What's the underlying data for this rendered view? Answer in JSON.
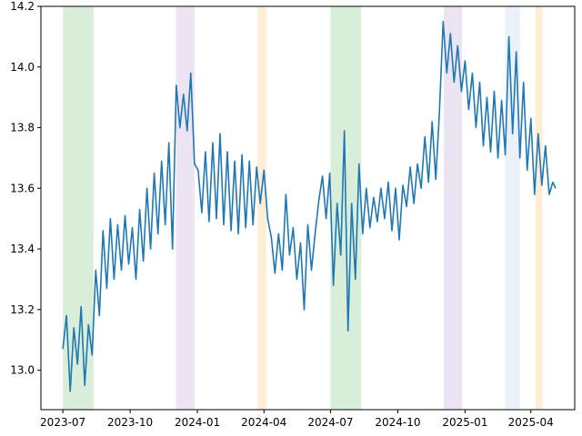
{
  "chart_data": {
    "type": "line",
    "title": "",
    "xlabel": "",
    "ylabel": "",
    "xlim": [
      "2023-06-01",
      "2025-05-31"
    ],
    "ylim": [
      12.87,
      14.2
    ],
    "grid": false,
    "x_ticks": [
      {
        "date": "2023-07-01",
        "label": "2023-07"
      },
      {
        "date": "2023-10-01",
        "label": "2023-10"
      },
      {
        "date": "2024-01-01",
        "label": "2024-01"
      },
      {
        "date": "2024-04-01",
        "label": "2024-04"
      },
      {
        "date": "2024-07-01",
        "label": "2024-07"
      },
      {
        "date": "2024-10-01",
        "label": "2024-10"
      },
      {
        "date": "2025-01-01",
        "label": "2025-01"
      },
      {
        "date": "2025-04-01",
        "label": "2025-04"
      }
    ],
    "y_ticks": [
      {
        "value": 13.0,
        "label": "13.0"
      },
      {
        "value": 13.2,
        "label": "13.2"
      },
      {
        "value": 13.4,
        "label": "13.4"
      },
      {
        "value": 13.6,
        "label": "13.6"
      },
      {
        "value": 13.8,
        "label": "13.8"
      },
      {
        "value": 14.0,
        "label": "14.0"
      },
      {
        "value": 14.2,
        "label": "14.2"
      }
    ],
    "shaded_spans": [
      {
        "start": "2023-07-01",
        "end": "2023-08-12",
        "color": "#2ca02c"
      },
      {
        "start": "2023-12-03",
        "end": "2023-12-28",
        "color": "#9467bd"
      },
      {
        "start": "2024-03-23",
        "end": "2024-04-04",
        "color": "#ff9f1c"
      },
      {
        "start": "2024-07-01",
        "end": "2024-08-12",
        "color": "#2ca02c"
      },
      {
        "start": "2024-12-03",
        "end": "2024-12-28",
        "color": "#9467bd"
      },
      {
        "start": "2025-02-25",
        "end": "2025-03-17",
        "color": "#8fb3d9"
      },
      {
        "start": "2025-04-07",
        "end": "2025-04-17",
        "color": "#ff9f1c"
      }
    ],
    "series": [
      {
        "name": "series",
        "color": "#1f77b4",
        "points": [
          [
            "2023-07-01",
            13.07
          ],
          [
            "2023-07-06",
            13.18
          ],
          [
            "2023-07-11",
            12.93
          ],
          [
            "2023-07-16",
            13.14
          ],
          [
            "2023-07-21",
            13.02
          ],
          [
            "2023-07-26",
            13.21
          ],
          [
            "2023-07-31",
            12.95
          ],
          [
            "2023-08-05",
            13.15
          ],
          [
            "2023-08-10",
            13.05
          ],
          [
            "2023-08-15",
            13.33
          ],
          [
            "2023-08-20",
            13.18
          ],
          [
            "2023-08-25",
            13.46
          ],
          [
            "2023-08-30",
            13.27
          ],
          [
            "2023-09-04",
            13.5
          ],
          [
            "2023-09-09",
            13.3
          ],
          [
            "2023-09-14",
            13.48
          ],
          [
            "2023-09-19",
            13.33
          ],
          [
            "2023-09-24",
            13.51
          ],
          [
            "2023-09-29",
            13.35
          ],
          [
            "2023-10-04",
            13.47
          ],
          [
            "2023-10-09",
            13.3
          ],
          [
            "2023-10-14",
            13.53
          ],
          [
            "2023-10-19",
            13.36
          ],
          [
            "2023-10-24",
            13.6
          ],
          [
            "2023-10-29",
            13.4
          ],
          [
            "2023-11-03",
            13.65
          ],
          [
            "2023-11-08",
            13.45
          ],
          [
            "2023-11-13",
            13.69
          ],
          [
            "2023-11-18",
            13.48
          ],
          [
            "2023-11-23",
            13.75
          ],
          [
            "2023-11-28",
            13.4
          ],
          [
            "2023-12-03",
            13.94
          ],
          [
            "2023-12-08",
            13.8
          ],
          [
            "2023-12-13",
            13.91
          ],
          [
            "2023-12-18",
            13.79
          ],
          [
            "2023-12-23",
            13.98
          ],
          [
            "2023-12-28",
            13.68
          ],
          [
            "2024-01-02",
            13.66
          ],
          [
            "2024-01-07",
            13.52
          ],
          [
            "2024-01-12",
            13.72
          ],
          [
            "2024-01-17",
            13.49
          ],
          [
            "2024-01-22",
            13.75
          ],
          [
            "2024-01-27",
            13.5
          ],
          [
            "2024-02-01",
            13.78
          ],
          [
            "2024-02-06",
            13.48
          ],
          [
            "2024-02-11",
            13.72
          ],
          [
            "2024-02-16",
            13.46
          ],
          [
            "2024-02-21",
            13.69
          ],
          [
            "2024-02-26",
            13.45
          ],
          [
            "2024-03-02",
            13.71
          ],
          [
            "2024-03-07",
            13.47
          ],
          [
            "2024-03-12",
            13.69
          ],
          [
            "2024-03-17",
            13.48
          ],
          [
            "2024-03-22",
            13.67
          ],
          [
            "2024-03-27",
            13.55
          ],
          [
            "2024-04-01",
            13.66
          ],
          [
            "2024-04-06",
            13.5
          ],
          [
            "2024-04-11",
            13.44
          ],
          [
            "2024-04-16",
            13.32
          ],
          [
            "2024-04-21",
            13.45
          ],
          [
            "2024-04-26",
            13.33
          ],
          [
            "2024-05-01",
            13.58
          ],
          [
            "2024-05-06",
            13.38
          ],
          [
            "2024-05-11",
            13.47
          ],
          [
            "2024-05-16",
            13.3
          ],
          [
            "2024-05-21",
            13.42
          ],
          [
            "2024-05-26",
            13.2
          ],
          [
            "2024-05-31",
            13.48
          ],
          [
            "2024-06-05",
            13.33
          ],
          [
            "2024-06-10",
            13.45
          ],
          [
            "2024-06-15",
            13.56
          ],
          [
            "2024-06-20",
            13.64
          ],
          [
            "2024-06-25",
            13.5
          ],
          [
            "2024-06-30",
            13.65
          ],
          [
            "2024-07-05",
            13.28
          ],
          [
            "2024-07-10",
            13.55
          ],
          [
            "2024-07-15",
            13.38
          ],
          [
            "2024-07-20",
            13.79
          ],
          [
            "2024-07-25",
            13.13
          ],
          [
            "2024-07-30",
            13.55
          ],
          [
            "2024-08-04",
            13.3
          ],
          [
            "2024-08-09",
            13.68
          ],
          [
            "2024-08-14",
            13.45
          ],
          [
            "2024-08-19",
            13.6
          ],
          [
            "2024-08-24",
            13.47
          ],
          [
            "2024-08-29",
            13.57
          ],
          [
            "2024-09-03",
            13.49
          ],
          [
            "2024-09-08",
            13.6
          ],
          [
            "2024-09-13",
            13.5
          ],
          [
            "2024-09-18",
            13.62
          ],
          [
            "2024-09-23",
            13.46
          ],
          [
            "2024-09-28",
            13.6
          ],
          [
            "2024-10-03",
            13.43
          ],
          [
            "2024-10-08",
            13.61
          ],
          [
            "2024-10-13",
            13.54
          ],
          [
            "2024-10-18",
            13.67
          ],
          [
            "2024-10-23",
            13.55
          ],
          [
            "2024-10-28",
            13.68
          ],
          [
            "2024-11-02",
            13.6
          ],
          [
            "2024-11-07",
            13.77
          ],
          [
            "2024-11-12",
            13.62
          ],
          [
            "2024-11-17",
            13.82
          ],
          [
            "2024-11-22",
            13.63
          ],
          [
            "2024-11-27",
            13.85
          ],
          [
            "2024-12-02",
            14.15
          ],
          [
            "2024-12-07",
            13.98
          ],
          [
            "2024-12-12",
            14.11
          ],
          [
            "2024-12-17",
            13.95
          ],
          [
            "2024-12-22",
            14.07
          ],
          [
            "2024-12-27",
            13.92
          ],
          [
            "2025-01-01",
            14.02
          ],
          [
            "2025-01-06",
            13.86
          ],
          [
            "2025-01-11",
            13.98
          ],
          [
            "2025-01-16",
            13.8
          ],
          [
            "2025-01-21",
            13.95
          ],
          [
            "2025-01-26",
            13.74
          ],
          [
            "2025-01-31",
            13.9
          ],
          [
            "2025-02-05",
            13.72
          ],
          [
            "2025-02-10",
            13.92
          ],
          [
            "2025-02-15",
            13.7
          ],
          [
            "2025-02-20",
            13.89
          ],
          [
            "2025-02-25",
            13.71
          ],
          [
            "2025-03-02",
            14.1
          ],
          [
            "2025-03-07",
            13.78
          ],
          [
            "2025-03-12",
            14.05
          ],
          [
            "2025-03-17",
            13.7
          ],
          [
            "2025-03-22",
            13.95
          ],
          [
            "2025-03-27",
            13.66
          ],
          [
            "2025-04-01",
            13.83
          ],
          [
            "2025-04-06",
            13.58
          ],
          [
            "2025-04-11",
            13.78
          ],
          [
            "2025-04-16",
            13.61
          ],
          [
            "2025-04-21",
            13.74
          ],
          [
            "2025-04-26",
            13.58
          ],
          [
            "2025-05-01",
            13.62
          ],
          [
            "2025-05-05",
            13.6
          ]
        ]
      }
    ]
  }
}
